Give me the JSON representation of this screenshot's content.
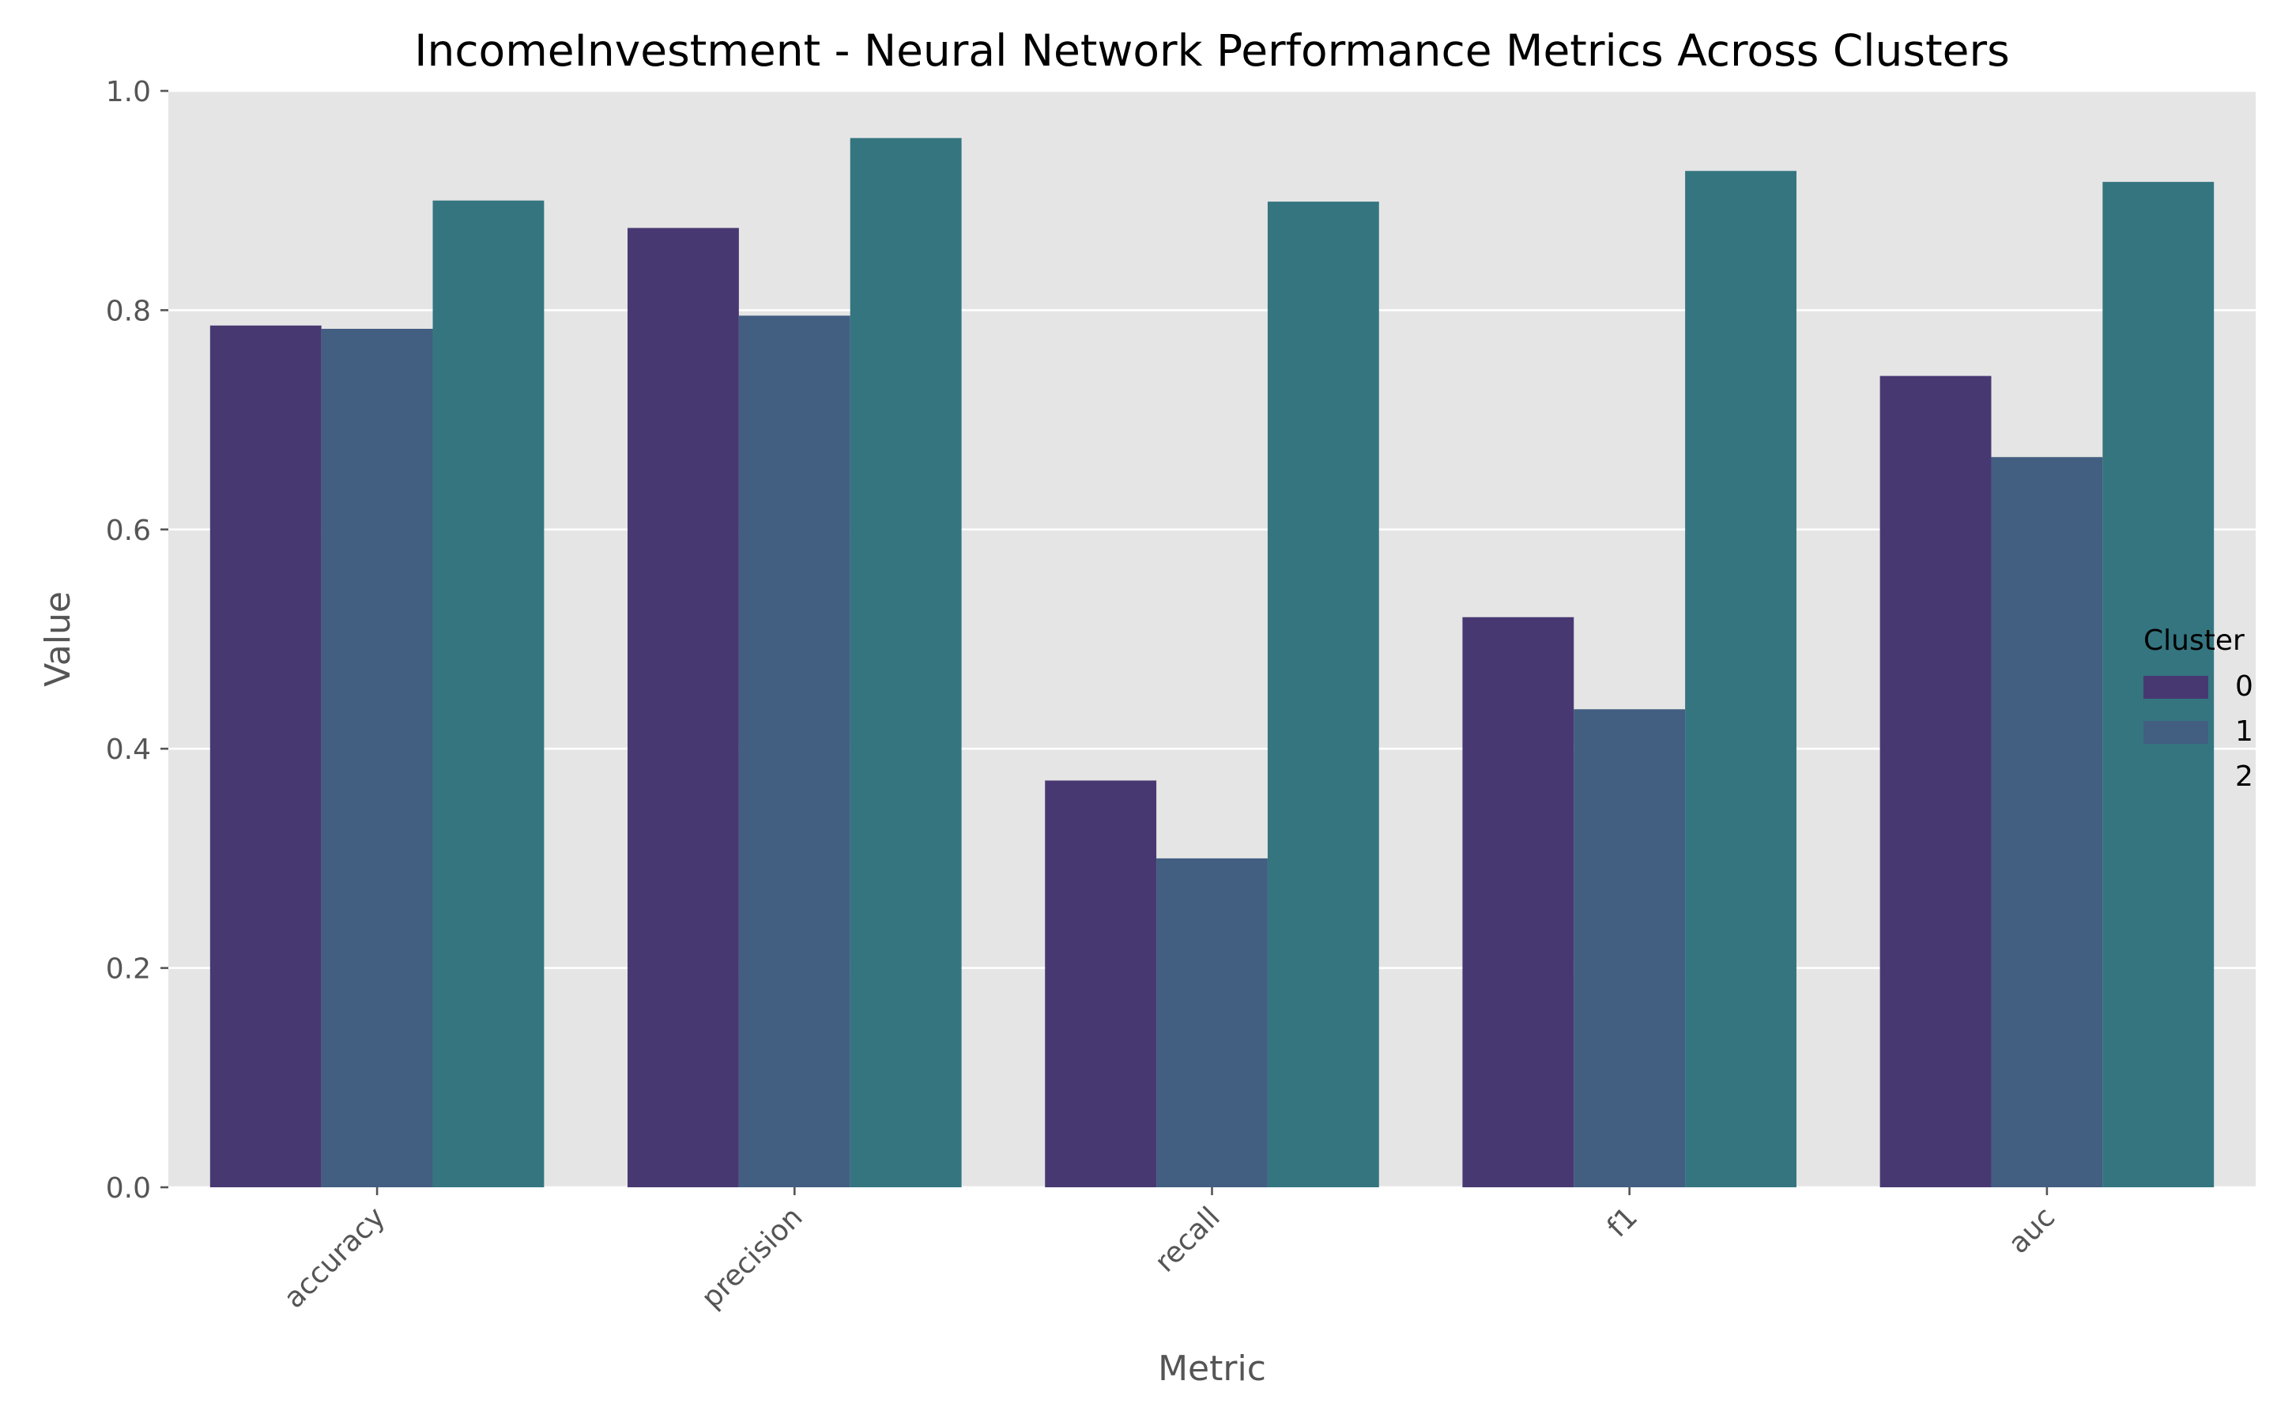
{
  "chart_data": {
    "type": "bar",
    "title": "IncomeInvestment - Neural Network Performance Metrics Across Clusters",
    "xlabel": "Metric",
    "ylabel": "Value",
    "categories": [
      "accuracy",
      "precision",
      "recall",
      "f1",
      "auc"
    ],
    "series": [
      {
        "name": "0",
        "values": [
          0.786,
          0.875,
          0.371,
          0.52,
          0.74
        ]
      },
      {
        "name": "1",
        "values": [
          0.783,
          0.795,
          0.3,
          0.436,
          0.666
        ]
      },
      {
        "name": "2",
        "values": [
          0.9,
          0.957,
          0.899,
          0.927,
          0.917
        ]
      }
    ],
    "ylim": [
      0,
      1.0
    ],
    "yticks": [
      "0.0",
      "0.2",
      "0.4",
      "0.6",
      "0.8",
      "1.0"
    ],
    "legend": {
      "title": "Cluster",
      "placement": "right"
    },
    "grid": true,
    "colors": {
      "series": [
        "#483872",
        "#425e81",
        "#347580"
      ],
      "plot_background": "#e5e5e5",
      "grid": "#ffffff",
      "text": "#555555",
      "title": "#000000"
    }
  }
}
